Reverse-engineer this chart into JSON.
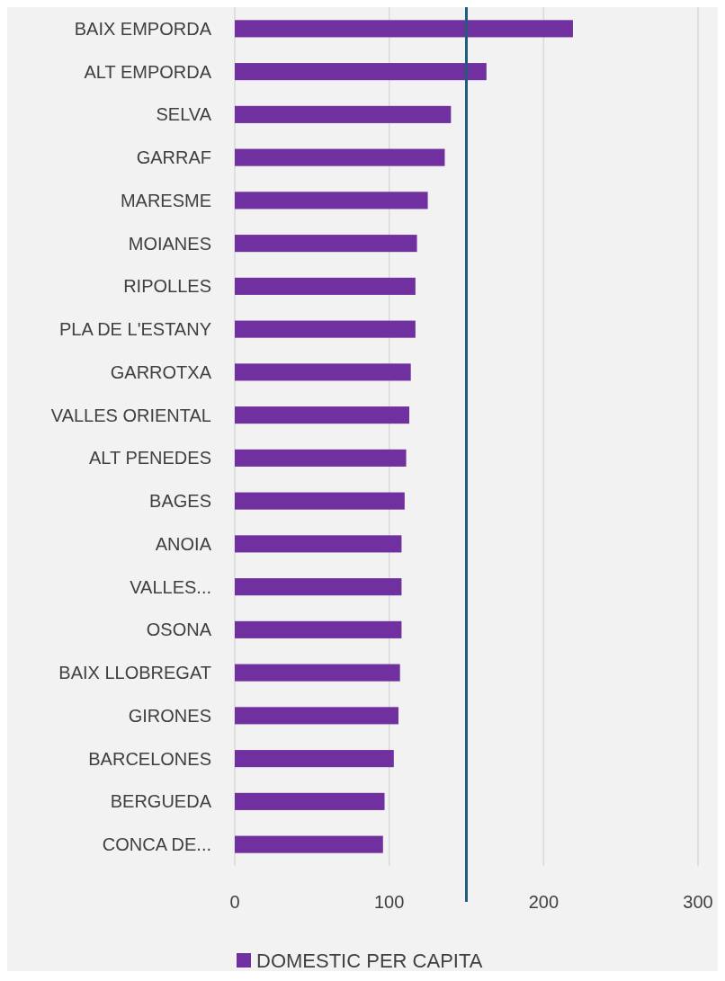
{
  "chart_data": {
    "type": "bar",
    "orientation": "horizontal",
    "categories": [
      "BAIX EMPORDA",
      "ALT EMPORDA",
      "SELVA",
      "GARRAF",
      "MARESME",
      "MOIANES",
      "RIPOLLES",
      "PLA DE L'ESTANY",
      "GARROTXA",
      "VALLES ORIENTAL",
      "ALT PENEDES",
      "BAGES",
      "ANOIA",
      "VALLES...",
      "OSONA",
      "BAIX LLOBREGAT",
      "GIRONES",
      "BARCELONES",
      "BERGUEDA",
      "CONCA DE..."
    ],
    "series": [
      {
        "name": "DOMESTIC PER CAPITA",
        "color": "#7030a0",
        "values": [
          219,
          163,
          140,
          136,
          125,
          118,
          117,
          117,
          114,
          113,
          111,
          110,
          108,
          108,
          108,
          107,
          106,
          103,
          97,
          96
        ]
      }
    ],
    "xlim": [
      0,
      300
    ],
    "xticks": [
      0,
      100,
      200,
      300
    ],
    "grid": "x",
    "legend": "bottom",
    "ref_lines": [
      {
        "axis": "x",
        "value": 150,
        "color": "#1f5c7f"
      }
    ]
  }
}
